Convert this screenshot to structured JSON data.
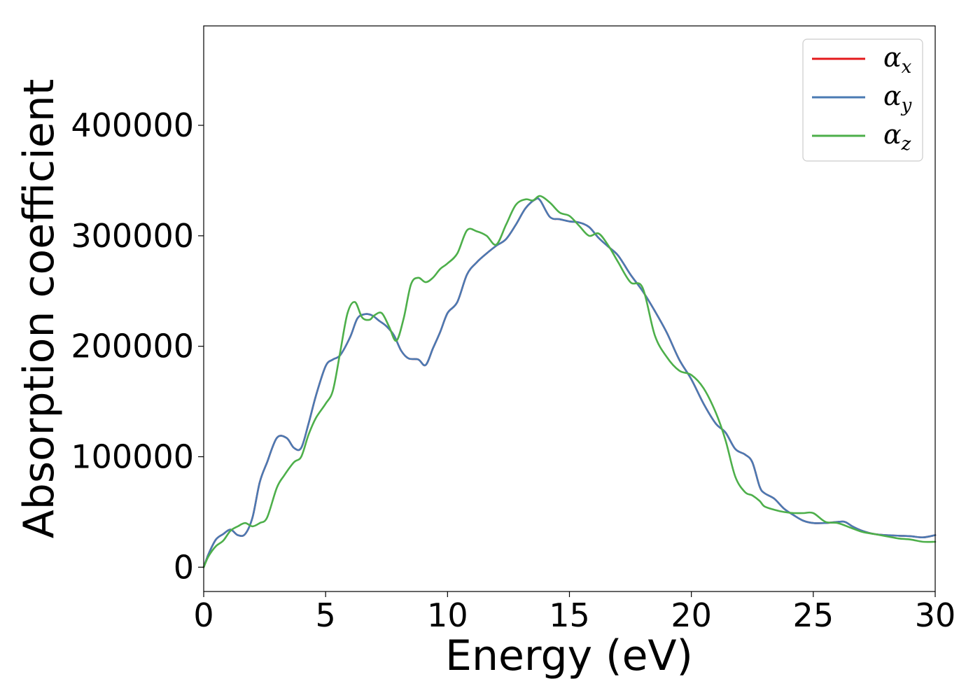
{
  "chart_data": {
    "type": "line",
    "title": "",
    "xlabel": "Energy (eV)",
    "ylabel": "Absorption coefficient",
    "xlim": [
      0,
      30
    ],
    "ylim": [
      -22000,
      490000
    ],
    "x_ticks": [
      0,
      5,
      10,
      15,
      20,
      25,
      30
    ],
    "y_ticks": [
      0,
      100000,
      200000,
      300000,
      400000
    ],
    "grid": false,
    "legend_position": "top-right",
    "series": [
      {
        "name": "α_x",
        "legend_main": "α",
        "legend_sub": "x",
        "color": "#e41a1c",
        "x": [
          0,
          0.2,
          0.5,
          0.8,
          1.1,
          1.4,
          1.7,
          2.0,
          2.3,
          2.6,
          3.0,
          3.4,
          3.7,
          4.0,
          4.3,
          4.6,
          5.0,
          5.3,
          5.6,
          6.0,
          6.3,
          6.6,
          6.9,
          7.2,
          7.5,
          7.8,
          8.1,
          8.4,
          8.8,
          9.1,
          9.4,
          9.7,
          10.0,
          10.4,
          10.8,
          11.2,
          11.6,
          12.0,
          12.4,
          12.8,
          13.2,
          13.6,
          13.8,
          14.2,
          14.6,
          15.0,
          15.4,
          15.8,
          16.2,
          16.6,
          17.0,
          17.5,
          18.0,
          18.5,
          19.0,
          19.5,
          20.0,
          20.5,
          21.0,
          21.4,
          21.8,
          22.2,
          22.5,
          22.8,
          23.0,
          23.4,
          23.8,
          24.2,
          24.6,
          25.0,
          25.5,
          26.0,
          26.3,
          26.6,
          27.0,
          27.5,
          28.0,
          28.5,
          29.0,
          29.5,
          30.0
        ],
        "y": [
          0,
          12000,
          25000,
          30000,
          34000,
          29000,
          30000,
          45000,
          77000,
          95000,
          117000,
          117000,
          108000,
          108000,
          130000,
          155000,
          182000,
          188000,
          192000,
          208000,
          225000,
          229000,
          228000,
          223000,
          218000,
          210000,
          196000,
          189000,
          188000,
          183000,
          198000,
          213000,
          230000,
          240000,
          265000,
          276000,
          284000,
          291000,
          297000,
          310000,
          325000,
          333000,
          332000,
          317000,
          315000,
          313000,
          312000,
          308000,
          298000,
          290000,
          282000,
          265000,
          250000,
          232000,
          212000,
          188000,
          170000,
          148000,
          130000,
          122000,
          107000,
          102000,
          95000,
          73000,
          67000,
          62000,
          53000,
          47000,
          42000,
          40000,
          40000,
          41000,
          41000,
          37000,
          33000,
          30000,
          29000,
          28500,
          28000,
          27000,
          29000
        ]
      },
      {
        "name": "α_y",
        "legend_main": "α",
        "legend_sub": "y",
        "color": "#4a7ab3",
        "x": [
          0,
          0.2,
          0.5,
          0.8,
          1.1,
          1.4,
          1.7,
          2.0,
          2.3,
          2.6,
          3.0,
          3.4,
          3.7,
          4.0,
          4.3,
          4.6,
          5.0,
          5.3,
          5.6,
          6.0,
          6.3,
          6.6,
          6.9,
          7.2,
          7.5,
          7.8,
          8.1,
          8.4,
          8.8,
          9.1,
          9.4,
          9.7,
          10.0,
          10.4,
          10.8,
          11.2,
          11.6,
          12.0,
          12.4,
          12.8,
          13.2,
          13.6,
          13.8,
          14.2,
          14.6,
          15.0,
          15.4,
          15.8,
          16.2,
          16.6,
          17.0,
          17.5,
          18.0,
          18.5,
          19.0,
          19.5,
          20.0,
          20.5,
          21.0,
          21.4,
          21.8,
          22.2,
          22.5,
          22.8,
          23.0,
          23.4,
          23.8,
          24.2,
          24.6,
          25.0,
          25.5,
          26.0,
          26.3,
          26.6,
          27.0,
          27.5,
          28.0,
          28.5,
          29.0,
          29.5,
          30.0
        ],
        "y": [
          0,
          12000,
          25000,
          30000,
          34000,
          29000,
          30000,
          45000,
          77000,
          95000,
          117000,
          117000,
          108000,
          108000,
          130000,
          155000,
          182000,
          188000,
          192000,
          208000,
          225000,
          229000,
          228000,
          223000,
          218000,
          210000,
          196000,
          189000,
          188000,
          183000,
          198000,
          213000,
          230000,
          240000,
          265000,
          276000,
          284000,
          291000,
          297000,
          310000,
          325000,
          333000,
          332000,
          317000,
          315000,
          313000,
          312000,
          308000,
          298000,
          290000,
          282000,
          265000,
          250000,
          232000,
          212000,
          188000,
          170000,
          148000,
          130000,
          122000,
          107000,
          102000,
          95000,
          73000,
          67000,
          62000,
          53000,
          47000,
          42000,
          40000,
          40000,
          41000,
          41000,
          37000,
          33000,
          30000,
          29000,
          28500,
          28000,
          27000,
          29000
        ]
      },
      {
        "name": "α_z",
        "legend_main": "α",
        "legend_sub": "z",
        "color": "#4daf4a",
        "x": [
          0,
          0.2,
          0.5,
          0.8,
          1.1,
          1.4,
          1.7,
          2.0,
          2.3,
          2.6,
          3.0,
          3.3,
          3.7,
          4.0,
          4.3,
          4.6,
          5.0,
          5.3,
          5.6,
          5.9,
          6.2,
          6.5,
          6.8,
          7.0,
          7.3,
          7.6,
          7.9,
          8.2,
          8.5,
          8.8,
          9.1,
          9.4,
          9.7,
          10.0,
          10.4,
          10.8,
          11.2,
          11.6,
          12.0,
          12.4,
          12.8,
          13.2,
          13.5,
          13.8,
          14.2,
          14.6,
          15.0,
          15.4,
          15.8,
          16.2,
          16.6,
          17.0,
          17.5,
          18.0,
          18.5,
          19.0,
          19.5,
          20.0,
          20.5,
          21.0,
          21.4,
          21.8,
          22.2,
          22.5,
          22.8,
          23.0,
          23.4,
          23.8,
          24.2,
          24.6,
          25.0,
          25.5,
          26.0,
          26.5,
          27.0,
          27.5,
          28.0,
          28.5,
          29.0,
          29.5,
          30.0
        ],
        "y": [
          0,
          10000,
          19000,
          24000,
          33000,
          37000,
          40000,
          37000,
          40000,
          45000,
          72000,
          83000,
          95000,
          100000,
          120000,
          135000,
          148000,
          160000,
          195000,
          230000,
          240000,
          226000,
          224000,
          228000,
          230000,
          218000,
          205000,
          225000,
          256000,
          262000,
          258000,
          262000,
          270000,
          275000,
          284000,
          305000,
          304000,
          300000,
          292000,
          310000,
          328000,
          333000,
          332000,
          336000,
          330000,
          321000,
          318000,
          309000,
          300000,
          302000,
          291000,
          276000,
          258000,
          253000,
          210000,
          190000,
          178000,
          174000,
          162000,
          140000,
          115000,
          82000,
          68000,
          65000,
          60000,
          55000,
          52000,
          50000,
          49000,
          49000,
          49000,
          41000,
          40000,
          36000,
          32000,
          30000,
          28000,
          26000,
          25000,
          23000,
          23000
        ]
      }
    ]
  }
}
